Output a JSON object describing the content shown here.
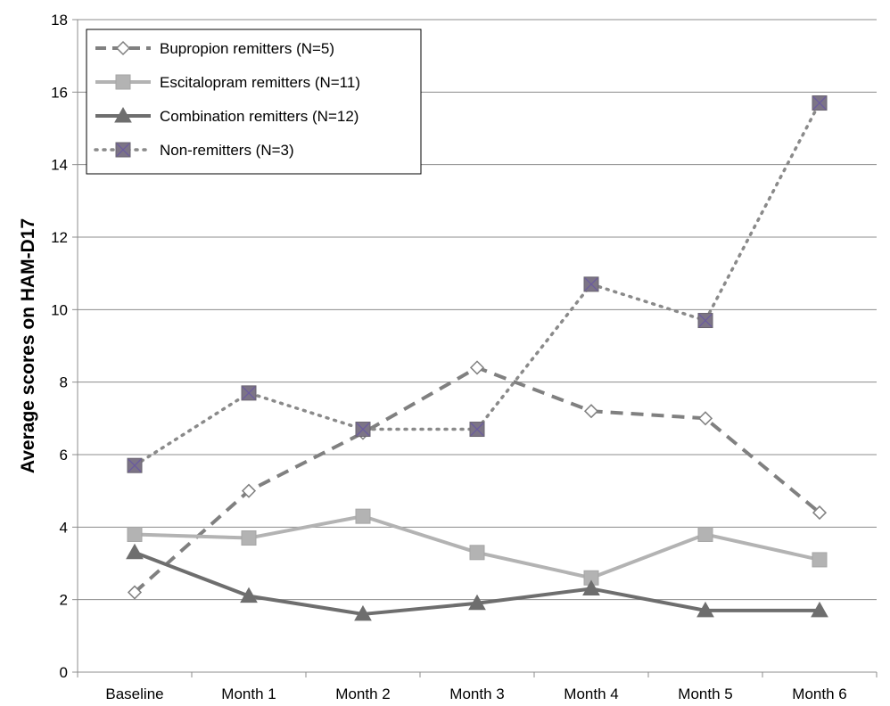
{
  "chart_data": {
    "type": "line",
    "title": "",
    "xlabel": "",
    "ylabel": "Average scores on HAM-D17",
    "categories": [
      "Baseline",
      "Month 1",
      "Month 2",
      "Month 3",
      "Month 4",
      "Month 5",
      "Month 6"
    ],
    "ylim": [
      0,
      18
    ],
    "yticks": [
      "0",
      "2",
      "4",
      "6",
      "8",
      "10",
      "12",
      "14",
      "16",
      "18"
    ],
    "grid": "horizontal",
    "legend_position": "top-left",
    "series": [
      {
        "name": "Bupropion remitters (N=5)",
        "values": [
          2.2,
          5.0,
          6.6,
          8.4,
          7.2,
          7.0,
          4.4
        ],
        "color": "#808080",
        "dash": "dashed",
        "marker": "open-diamond"
      },
      {
        "name": "Escitalopram remitters (N=11)",
        "values": [
          3.8,
          3.7,
          4.3,
          3.3,
          2.6,
          3.8,
          3.1
        ],
        "color": "#b3b3b3",
        "dash": "solid",
        "marker": "square"
      },
      {
        "name": "Combination remitters (N=12)",
        "values": [
          3.3,
          2.1,
          1.6,
          1.9,
          2.3,
          1.7,
          1.7
        ],
        "color": "#6e6e6e",
        "dash": "solid",
        "marker": "triangle"
      },
      {
        "name": "Non-remitters (N=3)",
        "values": [
          5.7,
          7.7,
          6.7,
          6.7,
          10.7,
          9.7,
          15.7
        ],
        "color": "#8a8a8a",
        "dash": "dotted",
        "marker": "x-square"
      }
    ]
  }
}
